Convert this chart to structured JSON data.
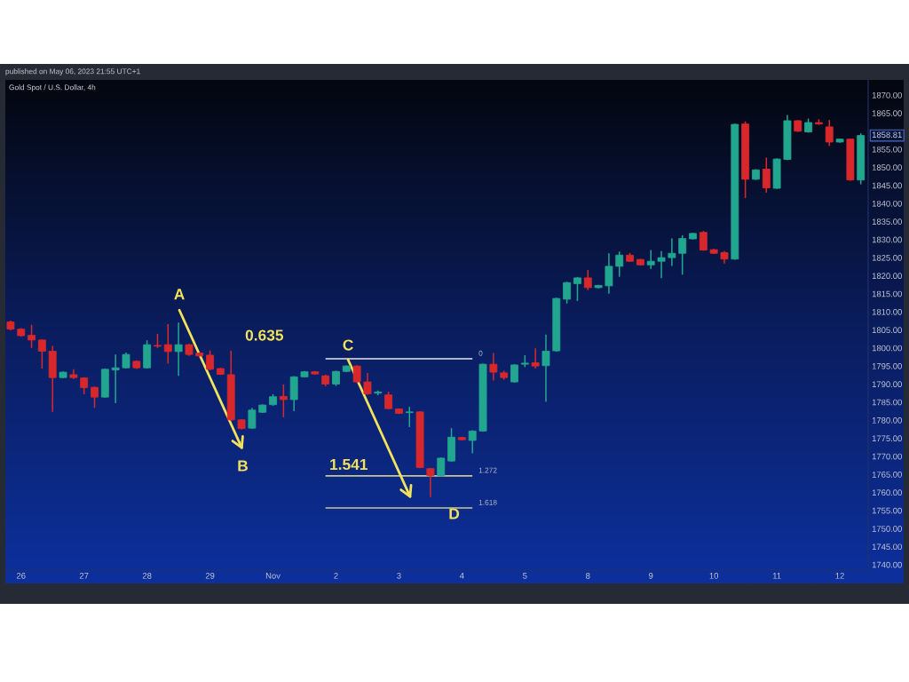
{
  "chart_data": {
    "type": "candlestick",
    "title": "Gold Spot / U.S. Dollar, 4h",
    "annotations": [
      "published on May 06, 2023 21:55 UTC+1",
      "A",
      "0.635",
      "B",
      "C",
      "1.541",
      "D",
      {
        "text": "1858.81",
        "y": 1858.81
      }
    ],
    "categories": [
      null,
      "26",
      null,
      null,
      null,
      null,
      null,
      "27",
      null,
      null,
      null,
      null,
      null,
      "28",
      null,
      null,
      null,
      null,
      null,
      "29",
      null,
      null,
      null,
      null,
      null,
      "Nov",
      null,
      null,
      null,
      null,
      null,
      "2",
      null,
      null,
      null,
      null,
      null,
      "3",
      null,
      null,
      null,
      null,
      null,
      "4",
      null,
      null,
      null,
      null,
      null,
      "5",
      null,
      null,
      null,
      null,
      null,
      "8",
      null,
      null,
      null,
      null,
      null,
      "9",
      null,
      null,
      null,
      null,
      null,
      "10",
      null,
      null,
      null,
      null,
      null,
      "11",
      null,
      null,
      null,
      null,
      null,
      "12",
      null,
      null
    ],
    "ylim": [
      1738.5,
      1874.2
    ],
    "yticks": [
      {
        "value": 1740,
        "label": "1740.00"
      },
      {
        "value": 1745,
        "label": "1745.00"
      },
      {
        "value": 1750,
        "label": "1750.00"
      },
      {
        "value": 1755,
        "label": "1755.00"
      },
      {
        "value": 1760,
        "label": "1760.00"
      },
      {
        "value": 1765,
        "label": "1765.00"
      },
      {
        "value": 1770,
        "label": "1770.00"
      },
      {
        "value": 1775,
        "label": "1775.00"
      },
      {
        "value": 1780,
        "label": "1780.00"
      },
      {
        "value": 1785,
        "label": "1785.00"
      },
      {
        "value": 1790,
        "label": "1790.00"
      },
      {
        "value": 1795,
        "label": "1795.00"
      },
      {
        "value": 1800,
        "label": "1800.00"
      },
      {
        "value": 1805,
        "label": "1805.00"
      },
      {
        "value": 1810,
        "label": "1810.00"
      },
      {
        "value": 1815,
        "label": "1815.00"
      },
      {
        "value": 1820,
        "label": "1820.00"
      },
      {
        "value": 1825,
        "label": "1825.00"
      },
      {
        "value": 1830,
        "label": "1830.00"
      },
      {
        "value": 1835,
        "label": "1835.00"
      },
      {
        "value": 1840,
        "label": "1840.00"
      },
      {
        "value": 1845,
        "label": "1845.00"
      },
      {
        "value": 1850,
        "label": "1850.00"
      },
      {
        "value": 1855,
        "label": "1855.00"
      },
      {
        "value": 1865,
        "label": "1865.00"
      },
      {
        "value": 1870,
        "label": "1870.00"
      }
    ],
    "series": [
      {
        "ohlc": [
          [
            1807.2,
            1807.6,
            1804.9,
            1805.2
          ],
          [
            1805.2,
            1805.5,
            1803.1,
            1803.4
          ],
          [
            1803.5,
            1806.4,
            1800.0,
            1802.2
          ],
          [
            1802.2,
            1802.4,
            1794.3,
            1799.1
          ],
          [
            1799.1,
            1800.6,
            1782.3,
            1791.8
          ],
          [
            1791.8,
            1793.5,
            1791.6,
            1793.3
          ],
          [
            1792.6,
            1794.1,
            1791.4,
            1791.8
          ],
          [
            1791.7,
            1791.9,
            1787.2,
            1789.0
          ],
          [
            1789.1,
            1789.3,
            1783.4,
            1786.4
          ],
          [
            1786.4,
            1794.3,
            1786.2,
            1794.1
          ],
          [
            1793.9,
            1798.2,
            1784.7,
            1794.5
          ],
          [
            1794.5,
            1798.7,
            1794.3,
            1798.2
          ],
          [
            1796.3,
            1796.6,
            1794.2,
            1794.5
          ],
          [
            1794.5,
            1802.1,
            1794.3,
            1800.9
          ],
          [
            1800.7,
            1803.9,
            1800.0,
            1800.5
          ],
          [
            1800.9,
            1806.6,
            1795.7,
            1799.0
          ],
          [
            1799.0,
            1807.0,
            1792.3,
            1800.9
          ],
          [
            1800.9,
            1801.2,
            1797.8,
            1798.2
          ],
          [
            1798.6,
            1798.8,
            1797.6,
            1797.8
          ],
          [
            1798.0,
            1799.3,
            1793.8,
            1794.1
          ],
          [
            1794.3,
            1794.5,
            1792.5,
            1792.7
          ],
          [
            1792.6,
            1799.2,
            1779.8,
            1780.1
          ],
          [
            1780.1,
            1780.3,
            1777.4,
            1777.7
          ],
          [
            1777.8,
            1783.4,
            1777.6,
            1782.8
          ],
          [
            1782.2,
            1784.4,
            1782.0,
            1784.2
          ],
          [
            1784.3,
            1787.2,
            1784.0,
            1786.5
          ],
          [
            1786.6,
            1789.9,
            1780.8,
            1785.7
          ],
          [
            1785.7,
            1792.2,
            1782.5,
            1792.0
          ],
          [
            1792.0,
            1793.6,
            1791.8,
            1793.4
          ],
          [
            1793.4,
            1793.6,
            1792.6,
            1792.8
          ],
          [
            1792.3,
            1792.6,
            1789.4,
            1790.0
          ],
          [
            1790.0,
            1793.7,
            1789.5,
            1793.5
          ],
          [
            1793.5,
            1795.2,
            1793.3,
            1795.0
          ],
          [
            1795.0,
            1795.2,
            1790.3,
            1790.6
          ],
          [
            1790.6,
            1793.1,
            1787.0,
            1787.3
          ],
          [
            1787.5,
            1788.2,
            1786.9,
            1787.8
          ],
          [
            1787.0,
            1787.9,
            1783.0,
            1783.2
          ],
          [
            1783.1,
            1783.3,
            1781.7,
            1781.9
          ],
          [
            1782.1,
            1783.7,
            1778.1,
            1782.3
          ],
          [
            1782.3,
            1782.5,
            1766.7,
            1766.9
          ],
          [
            1766.6,
            1766.8,
            1758.7,
            1764.6
          ],
          [
            1764.6,
            1769.7,
            1764.4,
            1769.5
          ],
          [
            1768.7,
            1777.8,
            1768.5,
            1775.3
          ],
          [
            1775.2,
            1775.4,
            1774.4,
            1774.6
          ],
          [
            1774.4,
            1777.2,
            1770.8,
            1777.0
          ],
          [
            1777.0,
            1795.7,
            1776.8,
            1795.5
          ],
          [
            1795.5,
            1798.6,
            1791.0,
            1793.3
          ],
          [
            1793.1,
            1793.7,
            1791.2,
            1791.8
          ],
          [
            1790.6,
            1795.5,
            1790.4,
            1795.3
          ],
          [
            1795.5,
            1798.0,
            1794.7,
            1795.8
          ],
          [
            1795.9,
            1799.9,
            1794.3,
            1795.0
          ],
          [
            1795.1,
            1803.7,
            1785.1,
            1799.1
          ],
          [
            1799.2,
            1813.9,
            1799.0,
            1813.7
          ],
          [
            1813.5,
            1818.3,
            1812.3,
            1818.1
          ],
          [
            1817.8,
            1819.6,
            1813.0,
            1819.4
          ],
          [
            1819.4,
            1821.6,
            1816.0,
            1816.7
          ],
          [
            1816.7,
            1817.5,
            1816.5,
            1817.3
          ],
          [
            1817.2,
            1826.2,
            1815.0,
            1822.6
          ],
          [
            1822.6,
            1826.7,
            1819.7,
            1825.7
          ],
          [
            1825.7,
            1826.3,
            1823.8,
            1824.0
          ],
          [
            1824.5,
            1824.7,
            1822.8,
            1823.0
          ],
          [
            1823.0,
            1827.1,
            1821.9,
            1824.0
          ],
          [
            1824.0,
            1826.8,
            1819.3,
            1825.0
          ],
          [
            1825.0,
            1830.3,
            1822.7,
            1826.2
          ],
          [
            1826.2,
            1831.2,
            1820.3,
            1830.3
          ],
          [
            1830.2,
            1831.9,
            1830.0,
            1831.7
          ],
          [
            1832.0,
            1832.4,
            1826.9,
            1827.1
          ],
          [
            1827.2,
            1827.4,
            1826.0,
            1826.2
          ],
          [
            1826.4,
            1826.8,
            1823.4,
            1824.6
          ],
          [
            1824.6,
            1862.1,
            1824.4,
            1861.9
          ],
          [
            1862.0,
            1862.7,
            1841.5,
            1846.7
          ],
          [
            1846.7,
            1849.5,
            1846.5,
            1849.3
          ],
          [
            1849.5,
            1852.7,
            1843.0,
            1844.3
          ],
          [
            1844.2,
            1852.5,
            1844.0,
            1852.3
          ],
          [
            1852.2,
            1864.5,
            1852.0,
            1862.9
          ],
          [
            1862.9,
            1863.1,
            1859.8,
            1860.0
          ],
          [
            1859.8,
            1863.5,
            1859.6,
            1862.4
          ],
          [
            1862.4,
            1863.3,
            1861.8,
            1862.0
          ],
          [
            1861.2,
            1863.1,
            1855.9,
            1857.0
          ],
          [
            1857.0,
            1858.0,
            1856.8,
            1857.8
          ],
          [
            1857.8,
            1858.0,
            1846.3,
            1846.5
          ],
          [
            1846.5,
            1859.4,
            1845.3,
            1858.81
          ]
        ],
        "colors": [
          "#d8282c",
          "#d8282c",
          "#d8282c",
          "#d8282c",
          "#d8282c",
          "#22a68f",
          "#d8282c",
          "#d8282c",
          "#d8282c",
          "#22a68f",
          "#22a68f",
          "#22a68f",
          "#d8282c",
          "#22a68f",
          "#d8282c",
          "#d8282c",
          "#22a68f",
          "#d8282c",
          "#d8282c",
          "#d8282c",
          "#d8282c",
          "#d8282c",
          "#d8282c",
          "#22a68f",
          "#22a68f",
          "#22a68f",
          "#d8282c",
          "#22a68f",
          "#22a68f",
          "#d8282c",
          "#d8282c",
          "#22a68f",
          "#22a68f",
          "#d8282c",
          "#d8282c",
          "#22a68f",
          "#d8282c",
          "#d8282c",
          "#22a68f",
          "#d8282c",
          "#d8282c",
          "#22a68f",
          "#22a68f",
          "#d8282c",
          "#22a68f",
          "#22a68f",
          "#d8282c",
          "#d8282c",
          "#22a68f",
          "#22a68f",
          "#d8282c",
          "#22a68f",
          "#22a68f",
          "#22a68f",
          "#22a68f",
          "#d8282c",
          "#22a68f",
          "#22a68f",
          "#22a68f",
          "#d8282c",
          "#d8282c",
          "#22a68f",
          "#22a68f",
          "#22a68f",
          "#22a68f",
          "#22a68f",
          "#d8282c",
          "#d8282c",
          "#d8282c",
          "#22a68f",
          "#d8282c",
          "#22a68f",
          "#d8282c",
          "#22a68f",
          "#22a68f",
          "#d8282c",
          "#22a68f",
          "#d8282c",
          "#d8282c",
          "#22a68f",
          "#d8282c",
          "#22a68f"
        ]
      },
      {
        "type": "line",
        "name": "0",
        "color": "#e6e6e6",
        "values": [
          null,
          null,
          null,
          null,
          null,
          null,
          null,
          null,
          null,
          null,
          null,
          null,
          null,
          null,
          null,
          null,
          null,
          null,
          null,
          null,
          null,
          null,
          null,
          null,
          null,
          null,
          null,
          null,
          null,
          null,
          1797.0,
          1797.0,
          1797.0,
          1797.0,
          1797.0,
          1797.0,
          1797.0,
          1797.0,
          1797.0,
          1797.0,
          1797.0,
          1797.0,
          1797.0,
          1797.0,
          1797.0,
          null,
          null,
          null,
          null,
          null,
          null,
          null,
          null,
          null,
          null,
          null,
          null,
          null,
          null,
          null,
          null,
          null,
          null,
          null,
          null,
          null,
          null,
          null,
          null,
          null,
          null,
          null,
          null,
          null,
          null,
          null,
          null,
          null,
          null,
          null,
          null,
          null
        ]
      },
      {
        "type": "line",
        "name": "1.272",
        "color": "#c9c690",
        "values": [
          null,
          null,
          null,
          null,
          null,
          null,
          null,
          null,
          null,
          null,
          null,
          null,
          null,
          null,
          null,
          null,
          null,
          null,
          null,
          null,
          null,
          null,
          null,
          null,
          null,
          null,
          null,
          null,
          null,
          null,
          1764.6,
          1764.6,
          1764.6,
          1764.6,
          1764.6,
          1764.6,
          1764.6,
          1764.6,
          1764.6,
          1764.6,
          1764.6,
          1764.6,
          1764.6,
          1764.6,
          1764.6,
          null,
          null,
          null,
          null,
          null,
          null,
          null,
          null,
          null,
          null,
          null,
          null,
          null,
          null,
          null,
          null,
          null,
          null,
          null,
          null,
          null,
          null,
          null,
          null,
          null,
          null,
          null,
          null,
          null,
          null,
          null,
          null,
          null,
          null,
          null,
          null,
          null
        ]
      },
      {
        "type": "line",
        "name": "1.618",
        "color": "#c9c690",
        "values": [
          null,
          null,
          null,
          null,
          null,
          null,
          null,
          null,
          null,
          null,
          null,
          null,
          null,
          null,
          null,
          null,
          null,
          null,
          null,
          null,
          null,
          null,
          null,
          null,
          null,
          null,
          null,
          null,
          null,
          null,
          1755.7,
          1755.7,
          1755.7,
          1755.7,
          1755.7,
          1755.7,
          1755.7,
          1755.7,
          1755.7,
          1755.7,
          1755.7,
          1755.7,
          1755.7,
          1755.7,
          1755.7,
          null,
          null,
          null,
          null,
          null,
          null,
          null,
          null,
          null,
          null,
          null,
          null,
          null,
          null,
          null,
          null,
          null,
          null,
          null,
          null,
          null,
          null,
          null,
          null,
          null,
          null,
          null,
          null,
          null,
          null,
          null,
          null,
          null,
          null,
          null,
          null,
          null
        ]
      }
    ]
  }
}
